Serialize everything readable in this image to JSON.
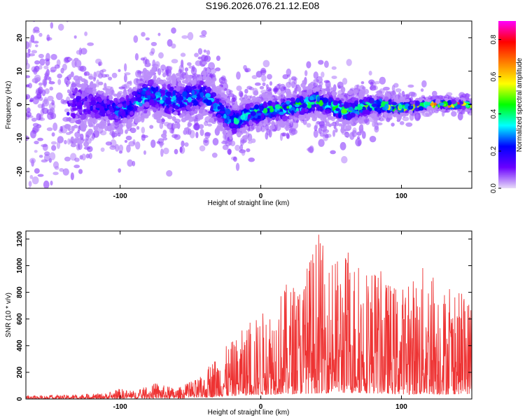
{
  "figure_title": "S196.2026.076.21.12.E08",
  "chart_data": [
    {
      "type": "heatmap",
      "title": "S196.2026.076.21.12.E08",
      "xlabel": "Height of straight line (km)",
      "ylabel": "Frequency (Hz)",
      "xlim": [
        -167,
        150
      ],
      "ylim": [
        -25,
        25
      ],
      "xticks": [
        -100,
        0,
        100
      ],
      "yticks": [
        -20,
        -10,
        0,
        10,
        20
      ],
      "colorbar": {
        "label": "Normalized spectral amplitude",
        "range": [
          0.0,
          0.9
        ],
        "ticks": [
          0.0,
          0.2,
          0.4,
          0.6,
          0.8
        ],
        "colormap": [
          "#e8dcf8",
          "#6a00ff",
          "#0000ff",
          "#00ffff",
          "#00ff00",
          "#ffff00",
          "#ff8000",
          "#ff0000",
          "#ff00ff"
        ]
      },
      "ridge": {
        "description": "Dominant energy near 0 Hz; broad scatter at low heights narrowing toward high heights",
        "x": [
          -150,
          -120,
          -100,
          -80,
          -60,
          -40,
          -20,
          0,
          20,
          40,
          60,
          80,
          100,
          120,
          145
        ],
        "center_hz": [
          0,
          0,
          -2,
          3,
          1,
          3,
          -5,
          -2,
          -1,
          1,
          -2,
          0,
          -1,
          0,
          0
        ],
        "spread_hz": [
          14,
          6,
          5,
          6,
          6,
          6,
          5,
          4,
          4,
          4,
          4,
          3,
          2,
          1,
          1
        ],
        "peak_amplitude": [
          0.15,
          0.2,
          0.3,
          0.35,
          0.35,
          0.3,
          0.35,
          0.4,
          0.45,
          0.45,
          0.45,
          0.5,
          0.6,
          0.75,
          0.85
        ]
      }
    },
    {
      "type": "line",
      "xlabel": "Height of straight line (km)",
      "ylabel": "SNR (10 * v/v)",
      "xlim": [
        -167,
        150
      ],
      "ylim": [
        0,
        1260
      ],
      "xticks": [
        -100,
        0,
        100
      ],
      "yticks": [
        0,
        200,
        400,
        600,
        800,
        1000,
        1200
      ],
      "color": "#ee3333",
      "envelope": {
        "x": [
          -167,
          -140,
          -110,
          -100,
          -90,
          -75,
          -60,
          -40,
          -35,
          -20,
          -10,
          0,
          15,
          30,
          40,
          50,
          60,
          70,
          80,
          90,
          100,
          110,
          120,
          130,
          140,
          150
        ],
        "base": [
          15,
          15,
          20,
          30,
          30,
          40,
          30,
          60,
          100,
          150,
          180,
          200,
          240,
          260,
          280,
          300,
          300,
          300,
          280,
          260,
          240,
          220,
          230,
          230,
          240,
          250
        ],
        "peak": [
          25,
          30,
          45,
          80,
          60,
          120,
          80,
          180,
          300,
          440,
          560,
          650,
          850,
          940,
          1260,
          1040,
          1130,
          1060,
          1030,
          900,
          860,
          950,
          1060,
          870,
          800,
          800
        ]
      }
    }
  ]
}
